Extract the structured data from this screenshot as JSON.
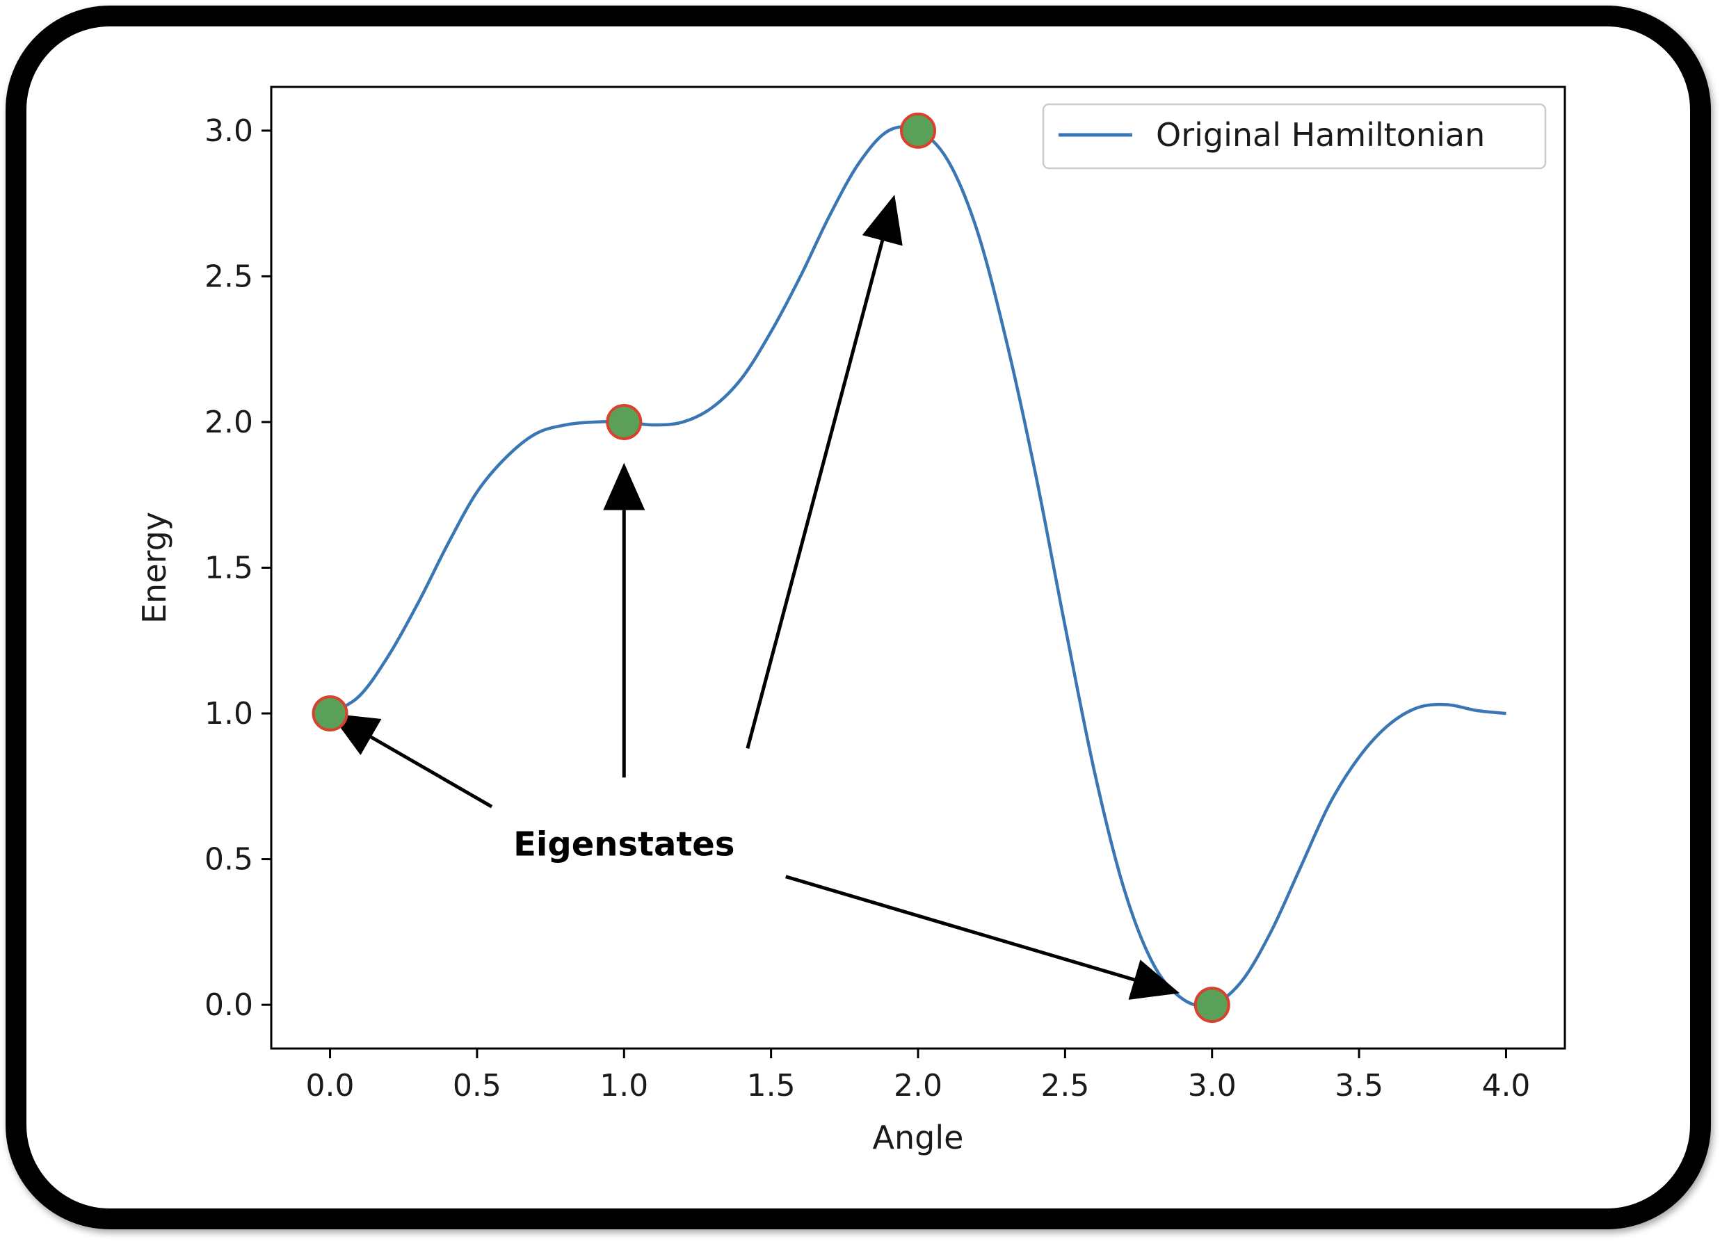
{
  "chart_data": {
    "type": "line",
    "xlabel": "Angle",
    "ylabel": "Energy",
    "xlim": [
      -0.2,
      4.2
    ],
    "ylim": [
      -0.15,
      3.15
    ],
    "xticks": [
      "0.0",
      "0.5",
      "1.0",
      "1.5",
      "2.0",
      "2.5",
      "3.0",
      "3.5",
      "4.0"
    ],
    "yticks": [
      "0.0",
      "0.5",
      "1.0",
      "1.5",
      "2.0",
      "2.5",
      "3.0"
    ],
    "grid": false,
    "legend_position": "top-right",
    "series": [
      {
        "name": "Original Hamiltonian",
        "color": "#3a76b4",
        "x": [
          0.0,
          0.1,
          0.2,
          0.3,
          0.4,
          0.5,
          0.6,
          0.7,
          0.8,
          0.9,
          1.0,
          1.1,
          1.2,
          1.3,
          1.4,
          1.5,
          1.6,
          1.7,
          1.8,
          1.9,
          2.0,
          2.1,
          2.2,
          2.3,
          2.4,
          2.5,
          2.6,
          2.7,
          2.8,
          2.9,
          3.0,
          3.1,
          3.2,
          3.3,
          3.4,
          3.5,
          3.6,
          3.7,
          3.8,
          3.9,
          4.0
        ],
        "y": [
          1.0,
          1.06,
          1.2,
          1.38,
          1.58,
          1.76,
          1.88,
          1.96,
          1.99,
          2.0,
          2.0,
          1.99,
          2.0,
          2.05,
          2.15,
          2.31,
          2.5,
          2.71,
          2.89,
          3.0,
          3.0,
          2.9,
          2.66,
          2.28,
          1.82,
          1.3,
          0.8,
          0.4,
          0.14,
          0.02,
          0.0,
          0.08,
          0.25,
          0.47,
          0.69,
          0.85,
          0.96,
          1.02,
          1.03,
          1.01,
          1.0
        ]
      }
    ],
    "markers": {
      "face_color": "#5aa058",
      "edge_color": "#d9412e",
      "points": [
        {
          "x": 0.0,
          "y": 1.0
        },
        {
          "x": 1.0,
          "y": 2.0
        },
        {
          "x": 2.0,
          "y": 3.0
        },
        {
          "x": 3.0,
          "y": 0.0
        }
      ]
    },
    "annotation": {
      "text": "Eigenstates",
      "anchor": {
        "x": 1.0,
        "y": 0.55
      },
      "arrows": [
        {
          "from": {
            "x": 0.55,
            "y": 0.68
          },
          "to": {
            "x": 0.0,
            "y": 1.0
          }
        },
        {
          "from": {
            "x": 1.0,
            "y": 0.78
          },
          "to": {
            "x": 1.0,
            "y": 1.86
          }
        },
        {
          "from": {
            "x": 1.42,
            "y": 0.88
          },
          "to": {
            "x": 1.92,
            "y": 2.78
          }
        },
        {
          "from": {
            "x": 1.55,
            "y": 0.44
          },
          "to": {
            "x": 2.89,
            "y": 0.04
          }
        }
      ]
    }
  }
}
